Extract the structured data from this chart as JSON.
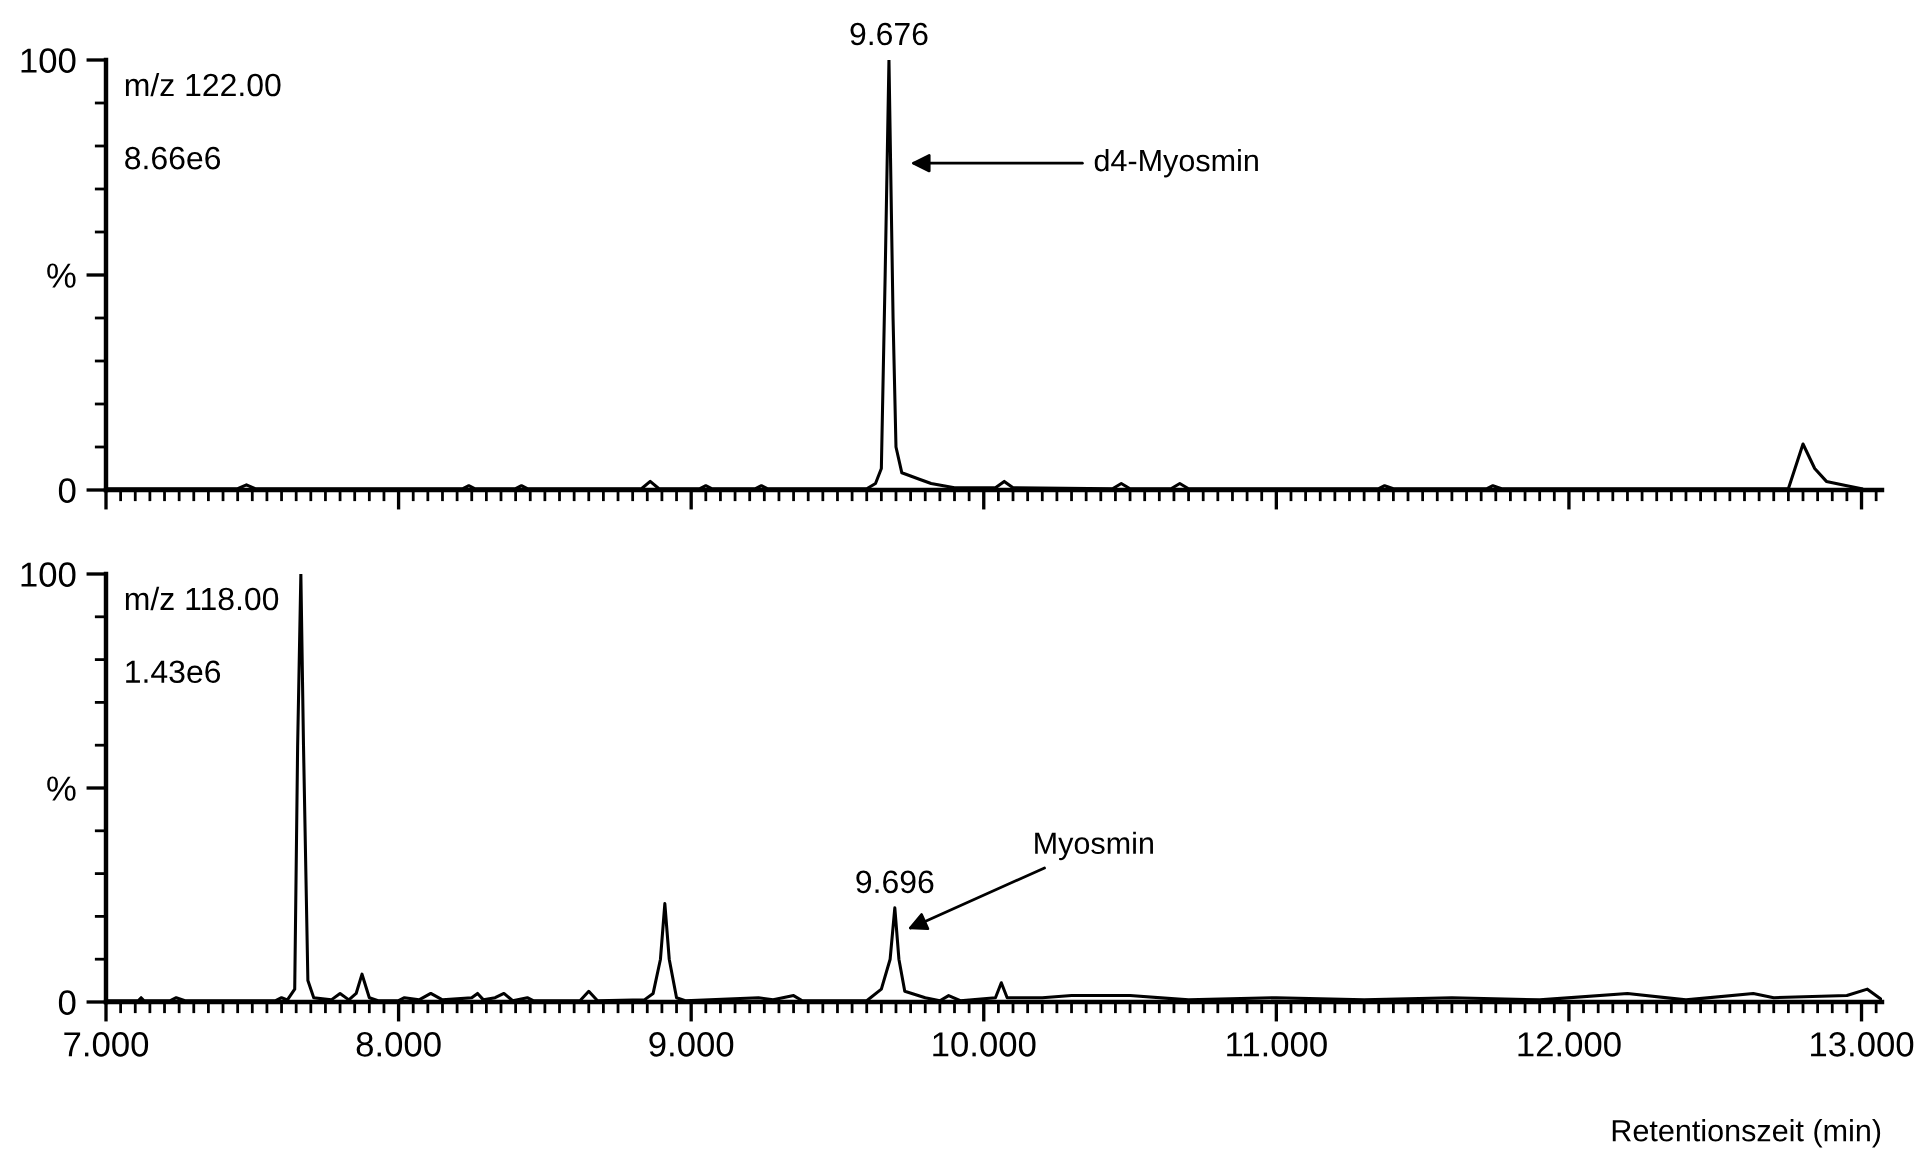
{
  "chart_data": [
    {
      "type": "line",
      "xlim": [
        7.0,
        13.07
      ],
      "ylim": [
        0,
        100
      ],
      "yticks": [
        0,
        {
          "value": 50,
          "label": "%"
        },
        100
      ],
      "xticks": [
        {
          "value": 7,
          "label": null
        },
        {
          "value": 8,
          "label": null
        },
        {
          "value": 9,
          "label": null
        },
        {
          "value": 10,
          "label": null
        },
        {
          "value": 11,
          "label": null
        },
        {
          "value": 12,
          "label": null
        },
        {
          "value": 13,
          "label": null
        }
      ],
      "tick_labels": "y",
      "grid": false,
      "legend": false,
      "series": [
        {
          "color": "#000000",
          "x": [
            7.0,
            7.45,
            7.48,
            7.51,
            8.22,
            8.24,
            8.26,
            8.4,
            8.42,
            8.44,
            8.83,
            8.86,
            8.89,
            9.03,
            9.05,
            9.07,
            9.22,
            9.24,
            9.26,
            9.6,
            9.63,
            9.65,
            9.663,
            9.676,
            9.69,
            9.7,
            9.72,
            9.78,
            9.82,
            9.9,
            10.04,
            10.07,
            10.1,
            10.44,
            10.47,
            10.5,
            10.64,
            10.67,
            10.7,
            11.35,
            11.37,
            11.4,
            11.72,
            11.74,
            11.77,
            12.75,
            12.8,
            12.84,
            12.88,
            12.95,
            13.0
          ],
          "values": [
            0.3,
            0.3,
            1.2,
            0.3,
            0.3,
            1,
            0.3,
            0.3,
            1,
            0.3,
            0.3,
            2,
            0.3,
            0.3,
            1,
            0.3,
            0.3,
            1,
            0.3,
            0.3,
            1.5,
            5,
            50,
            100,
            40,
            10,
            4,
            2.5,
            1.5,
            0.5,
            0.5,
            2,
            0.5,
            0.3,
            1.5,
            0.3,
            0.3,
            1.5,
            0.3,
            0.3,
            1,
            0.3,
            0.3,
            1,
            0.3,
            0.3,
            10.7,
            5,
            2,
            1,
            0.3
          ]
        }
      ],
      "annotations": [
        "m/z 122.00",
        "8.66e6",
        {
          "text": "9.676",
          "x": 9.676,
          "y": 100
        },
        "d4-Myosmin"
      ]
    },
    {
      "type": "line",
      "xlim": [
        7.0,
        13.07
      ],
      "ylim": [
        0,
        100
      ],
      "yticks": [
        0,
        {
          "value": 50,
          "label": "%"
        },
        100
      ],
      "xticks": [
        {
          "value": 7,
          "label": "7.000"
        },
        {
          "value": 8,
          "label": "8.000"
        },
        {
          "value": 9,
          "label": "9.000"
        },
        {
          "value": 10,
          "label": "10.000"
        },
        {
          "value": 11,
          "label": "11.000"
        },
        {
          "value": 12,
          "label": "12.000"
        },
        {
          "value": 13,
          "label": "13.000"
        }
      ],
      "xlabel": "Retentionszeit (min)",
      "grid": false,
      "legend": false,
      "series": [
        {
          "color": "#000000",
          "x": [
            7.0,
            7.11,
            7.12,
            7.13,
            7.22,
            7.24,
            7.27,
            7.58,
            7.6,
            7.62,
            7.645,
            7.655,
            7.666,
            7.675,
            7.69,
            7.71,
            7.77,
            7.8,
            7.83,
            7.855,
            7.875,
            7.9,
            7.93,
            8.0,
            8.02,
            8.07,
            8.11,
            8.15,
            8.25,
            8.27,
            8.29,
            8.33,
            8.36,
            8.39,
            8.44,
            8.46,
            8.62,
            8.65,
            8.68,
            8.84,
            8.87,
            8.895,
            8.91,
            8.925,
            8.95,
            8.98,
            9.23,
            9.28,
            9.35,
            9.38,
            9.6,
            9.65,
            9.68,
            9.696,
            9.71,
            9.73,
            9.8,
            9.85,
            9.88,
            9.92,
            10.04,
            10.06,
            10.08,
            10.2,
            10.3,
            10.5,
            10.7,
            11.0,
            11.3,
            11.6,
            11.9,
            12.2,
            12.4,
            12.63,
            12.7,
            12.95,
            13.02,
            13.06,
            13.07
          ],
          "values": [
            0.3,
            0.3,
            1,
            0.3,
            0.3,
            1,
            0.3,
            0.3,
            1,
            0.5,
            3,
            60,
            100,
            60,
            5,
            1,
            0.5,
            2,
            0.5,
            2,
            6.5,
            1,
            0.3,
            0.3,
            1,
            0.5,
            2,
            0.5,
            1,
            2,
            0.5,
            1,
            2,
            0.3,
            1,
            0.3,
            0.3,
            2.5,
            0.3,
            0.5,
            2,
            10,
            23,
            10,
            1,
            0.3,
            1,
            0.5,
            1.5,
            0.3,
            0.3,
            3,
            10,
            22,
            10,
            2.5,
            1,
            0.3,
            1.5,
            0.3,
            1,
            4.5,
            1,
            1,
            1.5,
            1.5,
            0.5,
            1,
            0.5,
            1,
            0.5,
            2,
            0.5,
            2,
            1,
            1.5,
            3,
            1,
            0.5
          ]
        }
      ],
      "annotations": [
        "m/z 118.00",
        "1.43e6",
        {
          "text": "9.696",
          "x": 9.696,
          "y": 22
        },
        {
          "text": "Myosmin",
          "x": 9.74,
          "y": 17
        }
      ]
    }
  ]
}
